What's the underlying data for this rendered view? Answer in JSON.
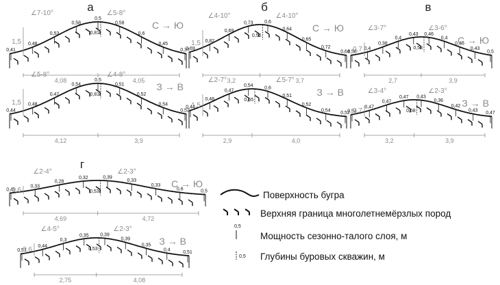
{
  "colors": {
    "surface": "#111111",
    "gray": "#8a8a8a"
  },
  "diagrams": [
    {
      "panel": "а",
      "direction": "С → Ю",
      "slopes": [
        "∠7-10°",
        "∠5-8°"
      ],
      "scale_label": "1,5",
      "thaw_labels": [
        "0,41",
        "0,48",
        "0,53",
        "0,58",
        "0,5",
        "0,58",
        "0,6",
        "0,45",
        "0,37"
      ],
      "borehole_label": "0,81",
      "dist_labels": [
        "4,08",
        "4,05"
      ]
    },
    {
      "panel": "а",
      "direction": "З → В",
      "slopes": [
        "∠5-8°",
        "∠4-8°"
      ],
      "scale_label": "1,5",
      "thaw_labels": [
        "0,44",
        "0,48",
        "0,47",
        "0,54",
        "0,5",
        "0,51",
        "0,52",
        "0,54",
        "0,52"
      ],
      "borehole_label": "0,81",
      "dist_labels": [
        "4,12",
        "3,9"
      ]
    },
    {
      "panel": "б",
      "direction": "С → Ю",
      "slopes": [
        "∠4-10°",
        "∠4-10°"
      ],
      "scale_label": "1,5",
      "thaw_labels": [
        "0,69",
        "0,82",
        "0,69",
        "0,73",
        "0,6",
        "0,64",
        "0,65",
        "0,72",
        "0,64"
      ],
      "borehole_label": "0,55",
      "dist_labels": [
        "3,2",
        "3,7"
      ]
    },
    {
      "panel": "б",
      "direction": "З → В",
      "slopes": [
        "∠2-7°",
        "∠5-7°"
      ],
      "scale_label": "1,5",
      "thaw_labels": [
        "0,44",
        "0,48",
        "0,47",
        "0,54",
        "0,6",
        "0,51",
        "0,52",
        "0,54",
        "0,52"
      ],
      "borehole_label": "0,55",
      "dist_labels": [
        "2,9",
        "4,0"
      ]
    },
    {
      "panel": "в",
      "direction": "С → Ю",
      "slopes": [
        "∠3-7°",
        "∠3-6°"
      ],
      "scale_label": "0,7",
      "thaw_labels": [
        "0,58",
        "0,4",
        "0,38",
        "0,4",
        "0,43",
        "0,46",
        "0,4",
        "0,45",
        "0,43",
        "0,5"
      ],
      "borehole_label": "0,58",
      "dist_labels": [
        "2,7",
        "3,9"
      ]
    },
    {
      "panel": "в",
      "direction": "З → В",
      "slopes": [
        "∠3-4°",
        "∠2-3°"
      ],
      "scale_label": "0,7",
      "thaw_labels": [
        "0,54",
        "0,47",
        "0,47",
        "0,47",
        "0,43",
        "0,36",
        "0,42",
        "0,43",
        "0,47"
      ],
      "borehole_label": "0,58",
      "dist_labels": [
        "3,2",
        "3,9"
      ]
    },
    {
      "panel": "г",
      "direction": "С → Ю",
      "slopes": [
        "∠2-4°",
        "∠2-3°"
      ],
      "scale_label": "0,6",
      "thaw_labels": [
        "0,49",
        "0,33",
        "0,28",
        "0,32",
        "0,39",
        "0,33",
        "0,33",
        "0,6",
        "0,5"
      ],
      "borehole_label": "0,53",
      "dist_labels": [
        "4,69",
        "4,72"
      ]
    },
    {
      "panel": "г",
      "direction": "З → В",
      "slopes": [
        "∠4-5°",
        "∠2-3°"
      ],
      "scale_label": "0,6",
      "thaw_labels": [
        "0,51",
        "0,44",
        "0,3",
        "0,35",
        "0,39",
        "0,39",
        "0,35",
        "0,4",
        "0,51"
      ],
      "borehole_label": "0,53",
      "dist_labels": [
        "2,75",
        "4,08"
      ]
    }
  ],
  "legend": {
    "surface": "Поверхность бугра",
    "permafrost": "Верхняя граница многолетнемёрзлых пород",
    "thaw_depth": "Мощность сезонно-талого слоя, м",
    "thaw_scale": "0,5",
    "borehole": "Глубины буровых скважин, м",
    "borehole_scale": "0,5"
  }
}
